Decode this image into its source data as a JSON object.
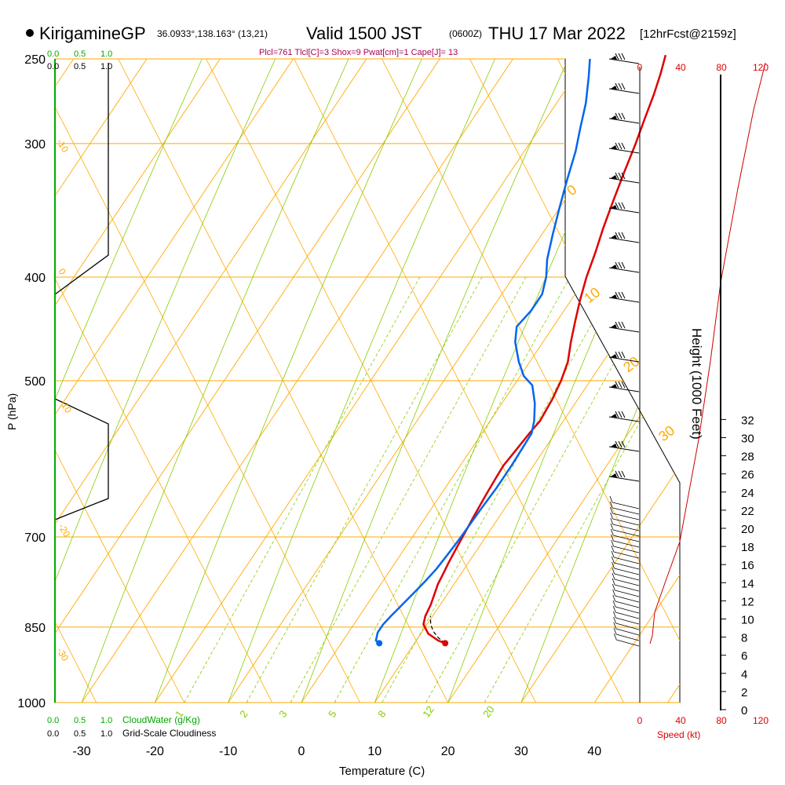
{
  "header": {
    "station": "KirigamineGP",
    "coords": "36.0933°,138.163° (13,21)",
    "valid": "Valid 1500 JST",
    "valid_utc": "(0600Z)",
    "date": "THU 17 Mar 2022",
    "forecast": "[12hrFcst@2159z]",
    "params": "Plcl=761 Tlcl[C]=3 Shox=9 Pwat[cm]=1 Cape[J]= 13"
  },
  "colors": {
    "isotherm": "#ffaa00",
    "mixing": "#88cc00",
    "temperature": "#dd0000",
    "dewpoint": "#0066ee",
    "cloudwater": "#00aa00"
  },
  "chart_data": {
    "type": "line",
    "xlabel": "Temperature (C)",
    "ylabel": "P (hPa)",
    "x_ticks": [
      "-30",
      "-20",
      "-10",
      "0",
      "10",
      "20",
      "30",
      "40"
    ],
    "y_ticks": [
      "250",
      "300",
      "400",
      "500",
      "700",
      "850",
      "1000"
    ],
    "isotherm_labels": [
      "0",
      "10",
      "20",
      "30"
    ],
    "left_isotherm_labels": [
      "-10",
      "0",
      "-10",
      "-20",
      "-30"
    ],
    "mixing_labels": [
      "1",
      "2",
      "3",
      "5",
      "8",
      "12",
      "20"
    ],
    "height_axis": {
      "label": "Height (1000 Feet)",
      "ticks": [
        "0",
        "2",
        "4",
        "6",
        "8",
        "10",
        "12",
        "14",
        "16",
        "18",
        "20",
        "22",
        "24",
        "26",
        "28",
        "30",
        "32"
      ]
    },
    "cloud_axis": {
      "top_green": [
        "0.0",
        "0.5",
        "1.0"
      ],
      "top_black": [
        "0.0",
        "0.5",
        "1.0"
      ],
      "bottom_green": [
        "0.0",
        "0.5",
        "1.0"
      ],
      "bottom_black": [
        "0.0",
        "0.5",
        "1.0"
      ],
      "cloudwater_label": "CloudWater (g/Kg)",
      "cloudiness_label": "Grid-Scale Cloudiness"
    },
    "speed_axis": {
      "ticks": [
        "0",
        "40",
        "80",
        "120"
      ],
      "label": "Speed (kt)"
    },
    "series": [
      {
        "name": "temperature",
        "points": [
          [
            14.2,
            880
          ],
          [
            13,
            875
          ],
          [
            11,
            862
          ],
          [
            9.5,
            845
          ],
          [
            9,
            830
          ],
          [
            8.7,
            810
          ],
          [
            8.2,
            790
          ],
          [
            7.8,
            775
          ],
          [
            7.6,
            760
          ],
          [
            7.3,
            740
          ],
          [
            7,
            715
          ],
          [
            6.8,
            695
          ],
          [
            6.5,
            670
          ],
          [
            6.2,
            640
          ],
          [
            6,
            615
          ],
          [
            5.9,
            600
          ],
          [
            6.2,
            580
          ],
          [
            6.5,
            560
          ],
          [
            6.8,
            545
          ],
          [
            6.5,
            520
          ],
          [
            6,
            500
          ],
          [
            5.2,
            480
          ],
          [
            3.8,
            460
          ],
          [
            2.5,
            440
          ],
          [
            1.2,
            420
          ],
          [
            0,
            400
          ],
          [
            -1,
            380
          ],
          [
            -2.2,
            360
          ],
          [
            -3.3,
            340
          ],
          [
            -4.4,
            320
          ],
          [
            -5.5,
            300
          ],
          [
            -6.5,
            285
          ],
          [
            -7.5,
            270
          ],
          [
            -8.5,
            258
          ],
          [
            -9.5,
            248
          ]
        ]
      },
      {
        "name": "dewpoint",
        "points": [
          [
            5.2,
            880
          ],
          [
            4.5,
            875
          ],
          [
            4,
            860
          ],
          [
            4,
            845
          ],
          [
            4.3,
            830
          ],
          [
            4.8,
            810
          ],
          [
            5.3,
            790
          ],
          [
            5.8,
            770
          ],
          [
            6.2,
            750
          ],
          [
            6.4,
            730
          ],
          [
            6.6,
            705
          ],
          [
            6.7,
            685
          ],
          [
            6.8,
            660
          ],
          [
            7,
            630
          ],
          [
            7,
            600
          ],
          [
            6.9,
            580
          ],
          [
            6.8,
            560
          ],
          [
            6,
            545
          ],
          [
            4.5,
            525
          ],
          [
            2.5,
            505
          ],
          [
            0.5,
            495
          ],
          [
            -1.5,
            480
          ],
          [
            -3.8,
            460
          ],
          [
            -5,
            445
          ],
          [
            -4.5,
            430
          ],
          [
            -4.5,
            415
          ],
          [
            -5.5,
            400
          ],
          [
            -7,
            385
          ],
          [
            -8.5,
            365
          ],
          [
            -10,
            345
          ],
          [
            -11.5,
            325
          ],
          [
            -13,
            305
          ],
          [
            -14.5,
            290
          ],
          [
            -16,
            275
          ],
          [
            -18,
            260
          ],
          [
            -19.5,
            250
          ]
        ]
      }
    ],
    "parcel": [
      [
        14.2,
        880
      ],
      [
        12.8,
        870
      ],
      [
        11.5,
        858
      ],
      [
        10.5,
        845
      ],
      [
        9.7,
        830
      ]
    ],
    "ylim": [
      1000,
      250
    ],
    "xlim": [
      -35,
      35
    ]
  }
}
